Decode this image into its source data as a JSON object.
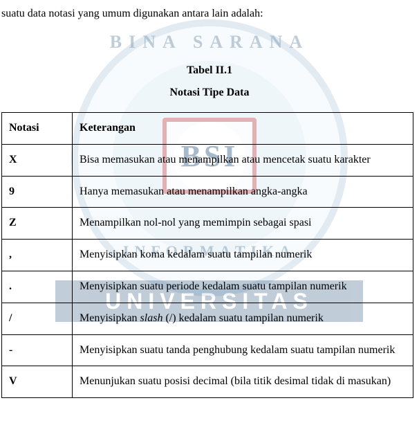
{
  "lead_text": "suatu data notasi yang umum digunakan antara lain adalah:",
  "caption": {
    "line1": "Tabel II.1",
    "line2": "Notasi Tipe Data"
  },
  "table": {
    "header": {
      "col1": "Notasi",
      "col2": "Keterangan"
    },
    "rows": [
      {
        "notasi": "X",
        "ket": "Bisa memasukan atau menampilkan atau mencetak suatu karakter"
      },
      {
        "notasi": "9",
        "ket": "Hanya memasukan atau menampilkan angka-angka"
      },
      {
        "notasi": "Z",
        "ket": "Menampilkan nol-nol yang memimpin sebagai spasi"
      },
      {
        "notasi": ",",
        "ket": "Menyisipkan koma kedalam suatu tampilan numerik"
      },
      {
        "notasi": ".",
        "ket": "Menyisipkan suatu periode kedalam suatu tampilan numerik"
      },
      {
        "notasi": "/",
        "ket_pre": "Menyisipkan ",
        "ket_em": "slash",
        "ket_post": " (/) kedalam suatu tampilan numerik"
      },
      {
        "notasi": "-",
        "ket": "Menyisipkan suatu tanda penghubung kedalam suatu tampilan numerik"
      },
      {
        "notasi": "V",
        "ket": "Menunjukan suatu posisi decimal (bila titik desimal tidak di masukan)"
      }
    ]
  },
  "watermark": {
    "top_text": "BINA  SARANA",
    "bottom_text": "INFORMATIKA",
    "badge_text": "BSI",
    "bar_text": "UNIVERSITAS"
  },
  "style": {
    "page_bg": "#ffffff",
    "text_color": "#000000",
    "border_color": "#000000",
    "font_family": "Times New Roman",
    "base_font_size_pt": 12,
    "watermark_blue": "#1f4e79",
    "watermark_ring_inner": "#cbe0ec",
    "watermark_ring_outer": "#e8f2f8",
    "watermark_red": "#c63a3f",
    "watermark_opacity": 0.55
  }
}
